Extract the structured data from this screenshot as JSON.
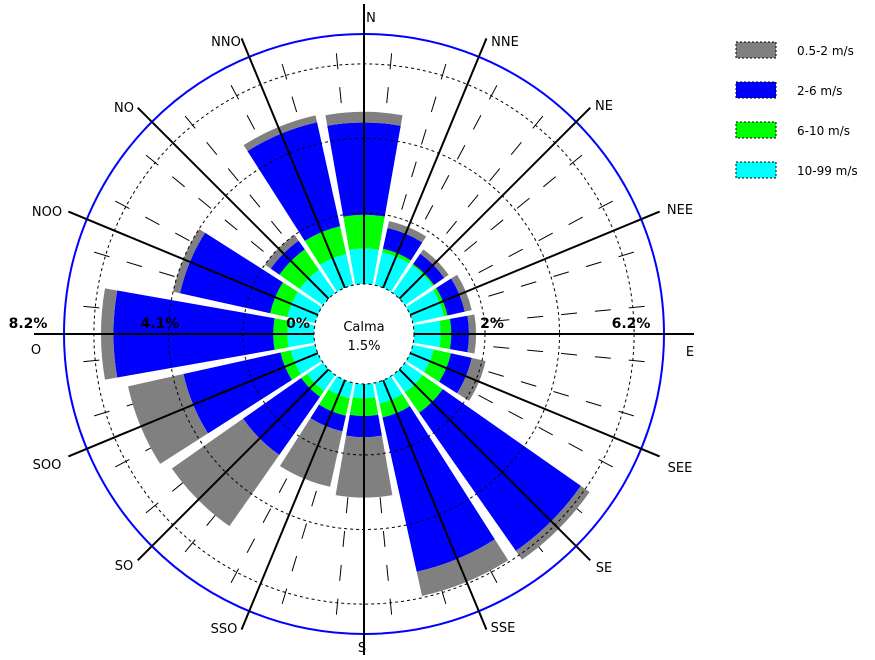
{
  "chart_data": {
    "type": "wind-rose",
    "title": "",
    "directions": [
      "N",
      "NNE",
      "NE",
      "NEE",
      "E",
      "SEE",
      "SE",
      "SSE",
      "S",
      "SSO",
      "SO",
      "SOO",
      "O",
      "NOO",
      "NO",
      "NNO"
    ],
    "ring_labels": [
      "0%",
      "2%",
      "4.1%",
      "6.2%",
      "8.2%"
    ],
    "calm": {
      "label": "Calma",
      "value_label": "1.5%",
      "value": 1.5
    },
    "rmax": 8.2,
    "series": [
      {
        "name": "10-99 m/s",
        "color": "#00ffff",
        "values": [
          1.0,
          0.95,
          0.95,
          0.9,
          0.75,
          0.6,
          0.6,
          0.6,
          0.4,
          0.45,
          0.55,
          0.7,
          0.75,
          0.8,
          0.8,
          0.9
        ]
      },
      {
        "name": "6-10 m/s",
        "color": "#00ff00",
        "values": [
          0.95,
          0.1,
          0.05,
          0.1,
          0.3,
          0.5,
          0.7,
          0.4,
          0.5,
          0.5,
          0.2,
          0.3,
          0.4,
          0.5,
          0.7,
          0.8
        ]
      },
      {
        "name": "2-6 m/s",
        "color": "#0000ff",
        "values": [
          2.6,
          0.6,
          0.35,
          0.5,
          0.5,
          0.6,
          4.75,
          4.45,
          0.6,
          0.45,
          2.0,
          2.8,
          4.5,
          2.6,
          0.3,
          3.0
        ]
      },
      {
        "name": "0.5-2 m/s",
        "color": "#808080",
        "values": [
          0.3,
          0.2,
          0.15,
          0.2,
          0.2,
          0.4,
          0.3,
          0.7,
          1.7,
          1.6,
          2.45,
          1.6,
          0.35,
          0.2,
          0.2,
          0.2
        ]
      }
    ],
    "legend": [
      {
        "label": "0.5-2 m/s",
        "color": "#808080"
      },
      {
        "label": "2-6 m/s",
        "color": "#0000ff"
      },
      {
        "label": "6-10 m/s",
        "color": "#00ff00"
      },
      {
        "label": "10-99 m/s",
        "color": "#00ffff"
      }
    ],
    "legend_position": "top-right",
    "frame_color": "#0000ff"
  }
}
